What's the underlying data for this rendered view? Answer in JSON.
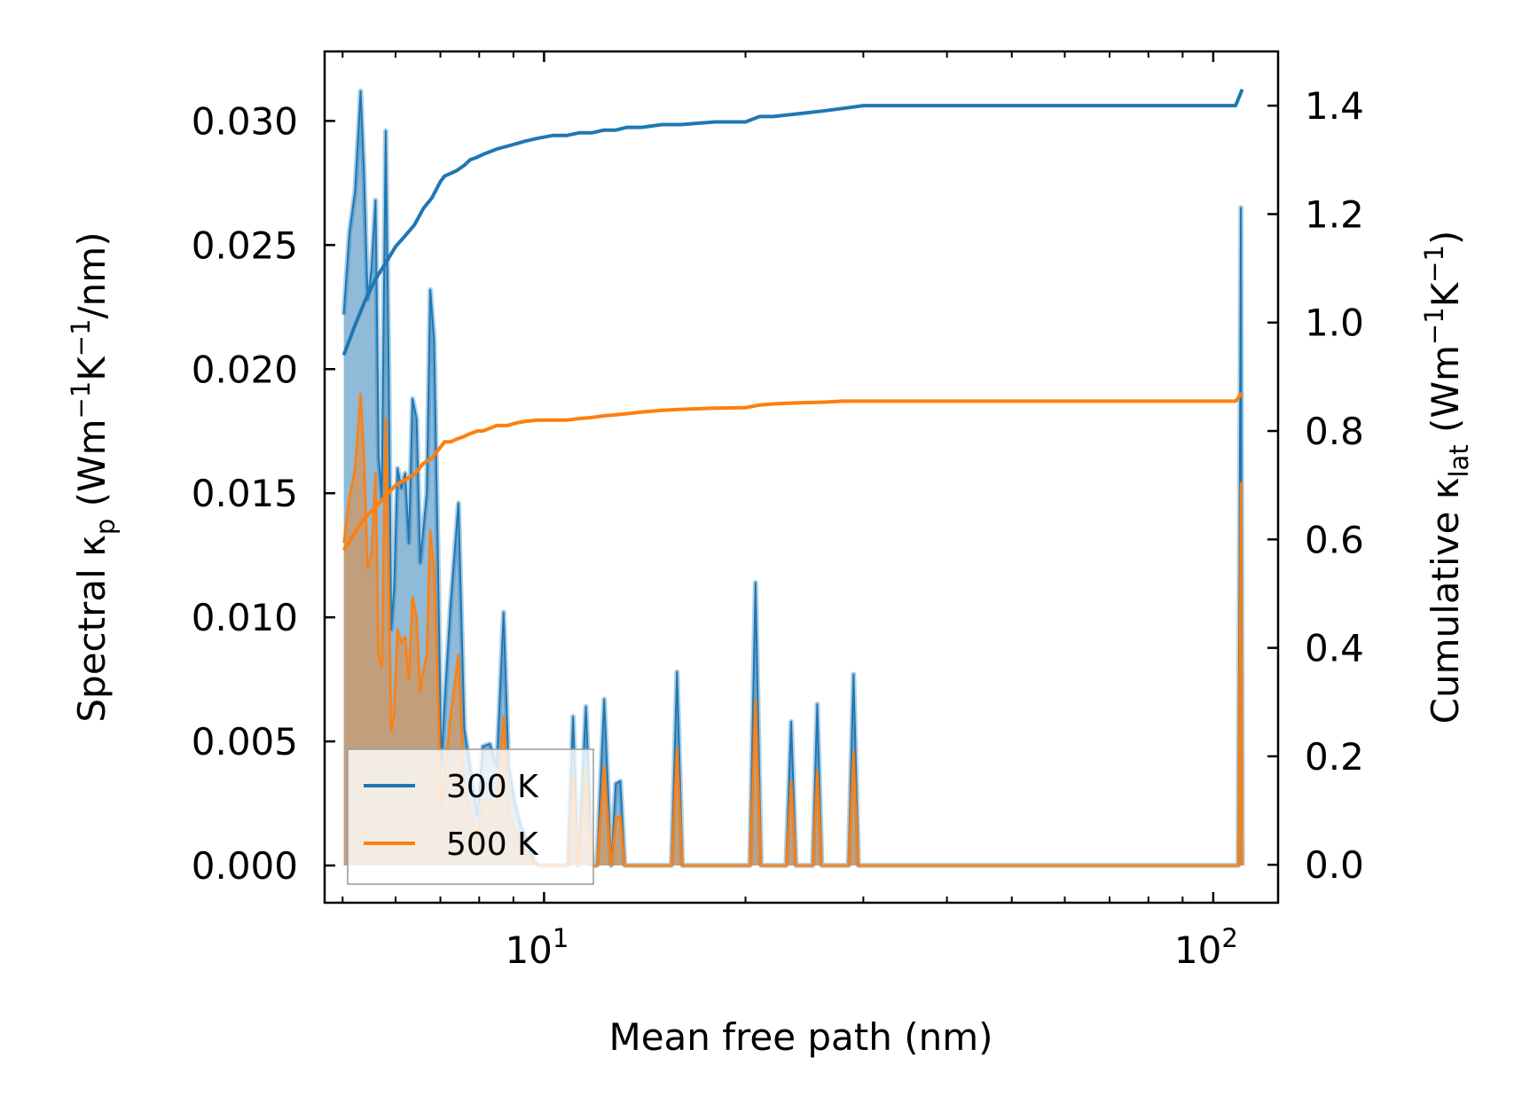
{
  "chart_data": {
    "type": "line",
    "xscale": "log",
    "xlim": [
      4.7,
      125
    ],
    "ylim": [
      -0.0015,
      0.0328
    ],
    "y2lim": [
      -0.07,
      1.5
    ],
    "xlabel": "Mean free path (nm)",
    "ylabel": {
      "main": "Spectral κ",
      "sub": "p",
      "units_open": " (Wm",
      "exp1": "−1",
      "mid": "K",
      "exp2": "−1",
      "units_close": "/nm)"
    },
    "y2label": {
      "main": "Cumulative κ",
      "sub": "lat",
      "units_open": " (Wm",
      "exp1": "−1",
      "mid": "K",
      "exp2": "−1",
      "units_close": ")"
    },
    "xticks": [
      {
        "value": 10,
        "base": "10",
        "exp": "1"
      },
      {
        "value": 100,
        "base": "10",
        "exp": "2"
      }
    ],
    "yticks": [
      {
        "value": 0.0,
        "label": "0.000"
      },
      {
        "value": 0.005,
        "label": "0.005"
      },
      {
        "value": 0.01,
        "label": "0.010"
      },
      {
        "value": 0.015,
        "label": "0.015"
      },
      {
        "value": 0.02,
        "label": "0.020"
      },
      {
        "value": 0.025,
        "label": "0.025"
      },
      {
        "value": 0.03,
        "label": "0.030"
      }
    ],
    "y2ticks": [
      {
        "value": 0.0,
        "label": "0.0"
      },
      {
        "value": 0.2,
        "label": "0.2"
      },
      {
        "value": 0.4,
        "label": "0.4"
      },
      {
        "value": 0.6,
        "label": "0.6"
      },
      {
        "value": 0.8,
        "label": "0.8"
      },
      {
        "value": 1.0,
        "label": "1.0"
      },
      {
        "value": 1.2,
        "label": "1.2"
      },
      {
        "value": 1.4,
        "label": "1.4"
      }
    ],
    "legend": {
      "placement": "lower-left",
      "entries": [
        "300 K",
        "500 K"
      ]
    },
    "series": [
      {
        "name": "300 K",
        "color": "#1f77b4",
        "spectral_x": [
          5.02,
          5.12,
          5.22,
          5.32,
          5.38,
          5.45,
          5.52,
          5.6,
          5.66,
          5.72,
          5.8,
          5.86,
          5.91,
          5.97,
          6.04,
          6.12,
          6.2,
          6.28,
          6.36,
          6.45,
          6.53,
          6.6,
          6.68,
          6.76,
          6.85,
          6.94,
          7.02,
          7.1,
          7.25,
          7.45,
          7.6,
          7.75,
          7.95,
          8.1,
          8.3,
          8.5,
          8.7,
          8.85,
          9.05,
          9.25,
          9.45,
          9.65,
          9.85,
          10.1,
          10.5,
          10.85,
          11.05,
          11.25,
          11.55,
          11.8,
          12.0,
          12.3,
          12.6,
          12.8,
          13.0,
          13.2,
          13.4,
          13.65,
          13.9,
          15.5,
          15.8,
          16.1,
          20.3,
          20.7,
          21.1,
          23.0,
          23.4,
          23.8,
          25.2,
          25.6,
          26.0,
          28.5,
          29.0,
          29.5,
          108.0,
          109.0,
          110.0,
          110.5
        ],
        "spectral_y": [
          0.0222,
          0.0255,
          0.0272,
          0.0312,
          0.028,
          0.0228,
          0.024,
          0.0268,
          0.0165,
          0.0148,
          0.0296,
          0.0198,
          0.0095,
          0.0112,
          0.016,
          0.0152,
          0.0158,
          0.013,
          0.0188,
          0.018,
          0.0122,
          0.0135,
          0.015,
          0.0232,
          0.0212,
          0.0125,
          0.004,
          0.0065,
          0.0105,
          0.0146,
          0.0055,
          0.004,
          0.002,
          0.0048,
          0.0049,
          0.004,
          0.0102,
          0.004,
          0.0025,
          0.0015,
          0.001,
          0.0002,
          0.0,
          0.0,
          0.0,
          0.0,
          0.006,
          0.0,
          0.0064,
          0.0,
          0.0,
          0.0067,
          0.0,
          0.0033,
          0.0034,
          0.0,
          0.0,
          0.0,
          0.0,
          0.0,
          0.0078,
          0.0,
          0.0,
          0.0114,
          0.0,
          0.0,
          0.0058,
          0.0,
          0.0,
          0.0065,
          0.0,
          0.0,
          0.0077,
          0.0,
          0.0,
          0.0,
          0.0265,
          0.0
        ],
        "cumulative_x": [
          5.02,
          5.2,
          5.4,
          5.6,
          5.8,
          6.0,
          6.2,
          6.4,
          6.6,
          6.8,
          7.0,
          7.1,
          7.25,
          7.4,
          7.6,
          7.75,
          7.95,
          8.1,
          8.3,
          8.5,
          8.8,
          9.1,
          9.4,
          9.8,
          10.3,
          10.8,
          11.3,
          11.8,
          12.3,
          12.8,
          13.3,
          14.0,
          15.0,
          16.0,
          18.0,
          20.0,
          21.0,
          22.0,
          24.0,
          26.0,
          28.0,
          30.0,
          40.0,
          60.0,
          80.0,
          100.0,
          108.0,
          110.5
        ],
        "cumulative_y": [
          0.94,
          0.99,
          1.04,
          1.08,
          1.11,
          1.14,
          1.16,
          1.18,
          1.21,
          1.23,
          1.26,
          1.27,
          1.275,
          1.28,
          1.29,
          1.3,
          1.305,
          1.31,
          1.315,
          1.32,
          1.325,
          1.33,
          1.335,
          1.34,
          1.345,
          1.345,
          1.35,
          1.35,
          1.355,
          1.355,
          1.36,
          1.36,
          1.365,
          1.365,
          1.37,
          1.37,
          1.38,
          1.38,
          1.385,
          1.39,
          1.395,
          1.4,
          1.4,
          1.4,
          1.4,
          1.4,
          1.4,
          1.43
        ]
      },
      {
        "name": "500 K",
        "color": "#ff7f0e",
        "spectral_x": [
          5.02,
          5.12,
          5.22,
          5.32,
          5.38,
          5.45,
          5.52,
          5.6,
          5.66,
          5.72,
          5.8,
          5.86,
          5.91,
          5.97,
          6.04,
          6.12,
          6.2,
          6.28,
          6.36,
          6.45,
          6.53,
          6.6,
          6.68,
          6.76,
          6.85,
          6.94,
          7.02,
          7.1,
          7.25,
          7.45,
          7.6,
          7.75,
          7.95,
          8.1,
          8.3,
          8.5,
          8.7,
          8.85,
          9.05,
          9.25,
          9.45,
          9.65,
          9.85,
          10.1,
          10.5,
          10.85,
          11.05,
          11.25,
          11.55,
          11.8,
          12.0,
          12.3,
          12.6,
          12.8,
          13.0,
          13.2,
          13.4,
          13.65,
          13.9,
          15.5,
          15.8,
          16.1,
          20.3,
          20.7,
          21.1,
          23.0,
          23.4,
          23.8,
          25.2,
          25.6,
          26.0,
          28.5,
          29.0,
          29.5,
          108.0,
          109.0,
          110.0,
          110.5
        ],
        "spectral_y": [
          0.013,
          0.0148,
          0.016,
          0.019,
          0.0165,
          0.012,
          0.0125,
          0.0158,
          0.0085,
          0.008,
          0.018,
          0.0115,
          0.0054,
          0.0062,
          0.0095,
          0.009,
          0.0092,
          0.0075,
          0.0108,
          0.01,
          0.007,
          0.0078,
          0.0085,
          0.0135,
          0.012,
          0.007,
          0.0022,
          0.0035,
          0.006,
          0.0085,
          0.003,
          0.0022,
          0.0011,
          0.0026,
          0.0027,
          0.0022,
          0.006,
          0.0022,
          0.0014,
          0.0008,
          0.0005,
          0.0001,
          0.0,
          0.0,
          0.0,
          0.0,
          0.0036,
          0.0,
          0.0038,
          0.0,
          0.0,
          0.004,
          0.0,
          0.0019,
          0.002,
          0.0,
          0.0,
          0.0,
          0.0,
          0.0,
          0.0047,
          0.0,
          0.0,
          0.0067,
          0.0,
          0.0,
          0.0034,
          0.0,
          0.0,
          0.0038,
          0.0,
          0.0,
          0.0046,
          0.0,
          0.0,
          0.0,
          0.0154,
          0.0
        ],
        "cumulative_x": [
          5.02,
          5.2,
          5.4,
          5.6,
          5.8,
          6.0,
          6.2,
          6.4,
          6.6,
          6.8,
          7.0,
          7.1,
          7.25,
          7.4,
          7.6,
          7.75,
          7.95,
          8.1,
          8.3,
          8.5,
          8.8,
          9.1,
          9.4,
          9.8,
          10.3,
          10.8,
          11.3,
          11.8,
          12.3,
          12.8,
          13.3,
          14.0,
          15.0,
          16.0,
          18.0,
          20.0,
          21.0,
          22.0,
          24.0,
          26.0,
          28.0,
          30.0,
          40.0,
          60.0,
          80.0,
          100.0,
          108.0,
          110.5
        ],
        "cumulative_y": [
          0.58,
          0.61,
          0.64,
          0.66,
          0.68,
          0.7,
          0.71,
          0.72,
          0.74,
          0.75,
          0.77,
          0.78,
          0.78,
          0.785,
          0.79,
          0.795,
          0.8,
          0.8,
          0.805,
          0.81,
          0.81,
          0.815,
          0.818,
          0.82,
          0.82,
          0.82,
          0.823,
          0.825,
          0.828,
          0.83,
          0.832,
          0.835,
          0.838,
          0.84,
          0.842,
          0.843,
          0.848,
          0.85,
          0.852,
          0.853,
          0.855,
          0.855,
          0.855,
          0.855,
          0.855,
          0.855,
          0.855,
          0.87
        ]
      }
    ]
  }
}
